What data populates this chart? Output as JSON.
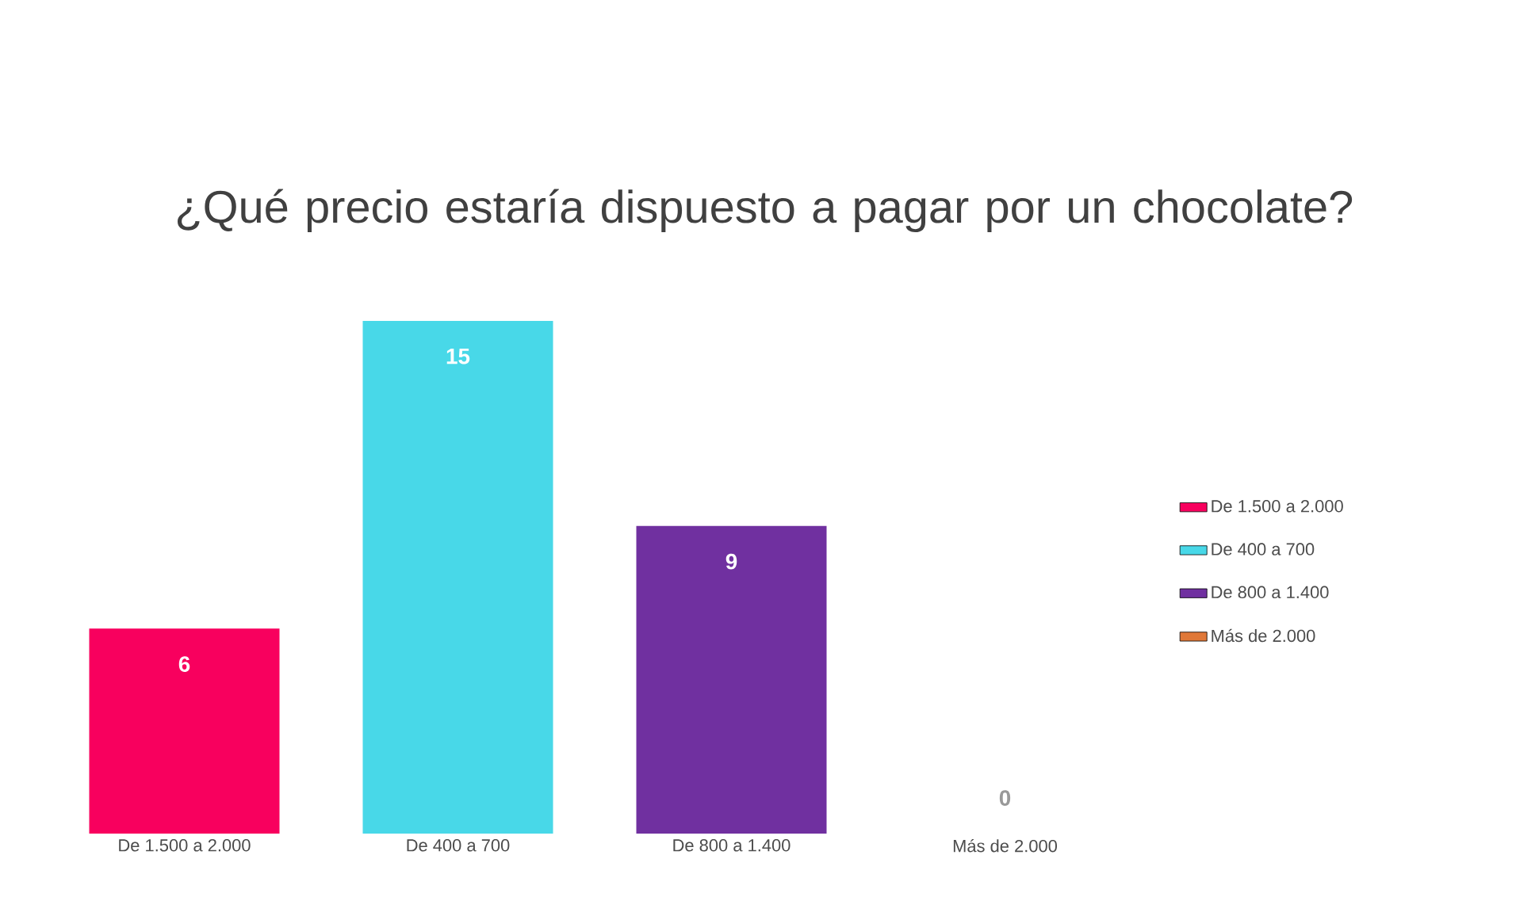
{
  "chart_data": {
    "type": "bar",
    "title": "¿Qué precio estaría dispuesto a pagar por un chocolate?",
    "categories": [
      "De 1.500 a 2.000",
      "De 400 a 700",
      "De 800 a 1.400",
      "Más de 2.000"
    ],
    "series": [
      {
        "name": "De 1.500 a 2.000",
        "color": "#f8005e",
        "values": [
          6,
          null,
          null,
          null
        ]
      },
      {
        "name": "De 400 a 700",
        "color": "#48d8e8",
        "values": [
          null,
          15,
          null,
          null
        ]
      },
      {
        "name": "De 800 a 1.400",
        "color": "#7030a0",
        "values": [
          null,
          null,
          9,
          null
        ]
      },
      {
        "name": "Más de 2.000",
        "color": "#e07838",
        "values": [
          null,
          null,
          null,
          0
        ]
      }
    ],
    "data_labels": true,
    "legend": "right"
  }
}
